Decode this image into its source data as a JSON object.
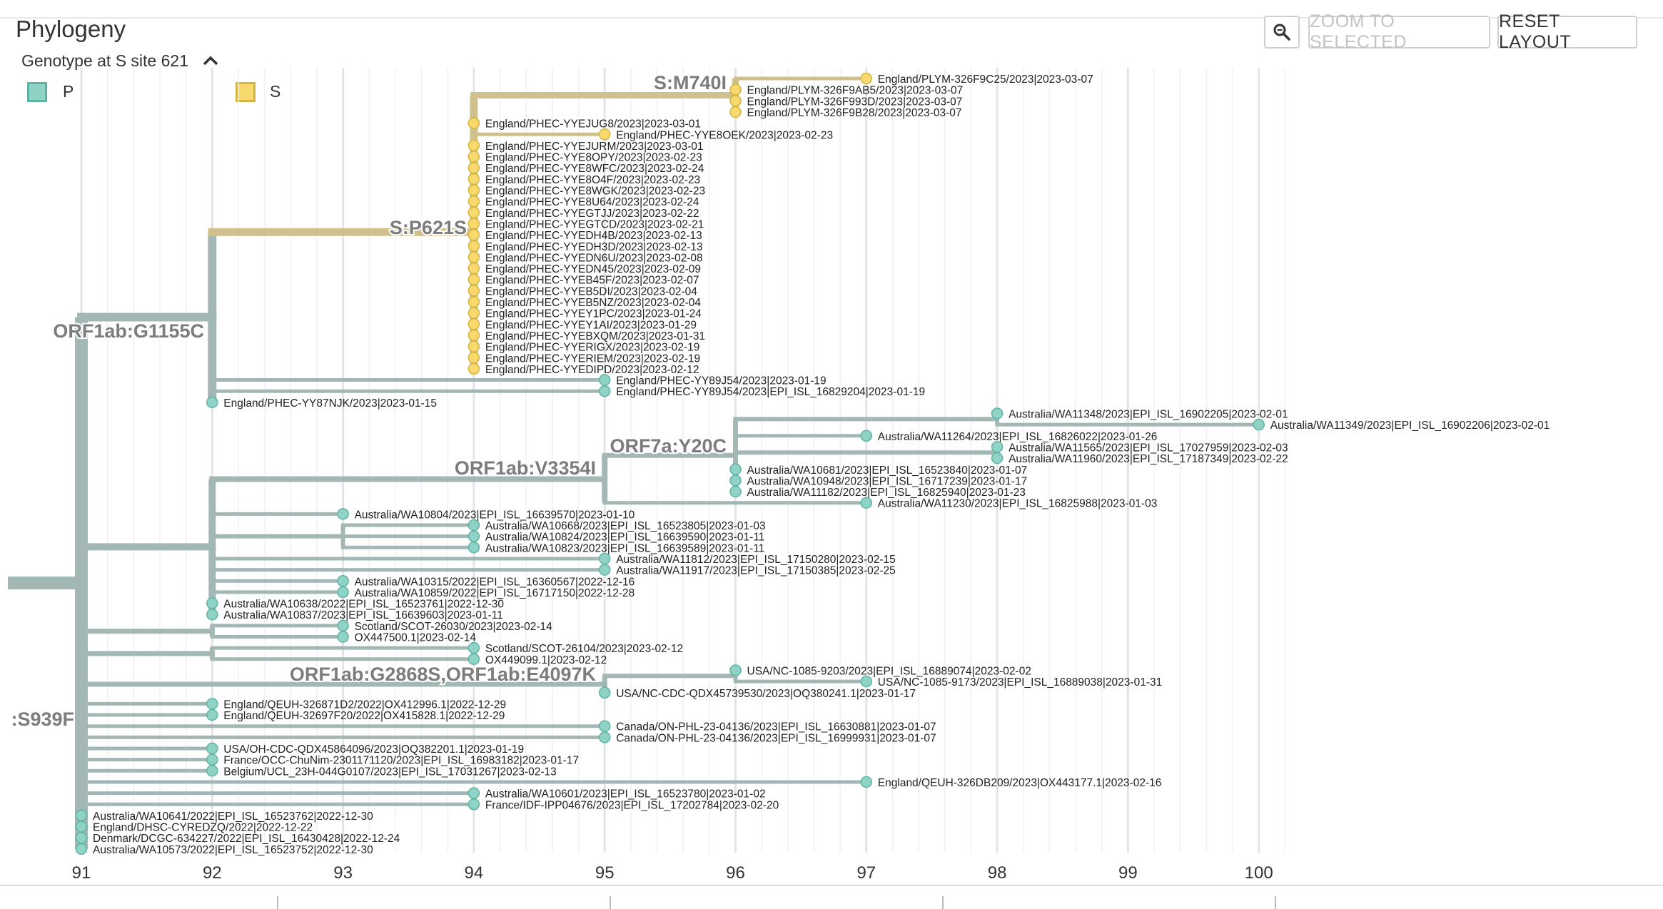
{
  "title": "Phylogeny",
  "toolbar": {
    "zoom_icon": "magnifier-icon",
    "zoom_to_selected_label": "ZOOM TO SELECTED",
    "reset_layout_label": "RESET LAYOUT"
  },
  "legend": {
    "title": "Genotype at S site 621",
    "collapse_icon": "chevron-up-icon",
    "items": [
      {
        "label": "P",
        "color": "#8fd3c6",
        "stroke": "#5fb3a3"
      },
      {
        "label": "S",
        "color": "#f8d96d",
        "stroke": "#d6b441"
      }
    ]
  },
  "colors": {
    "branch_P": "#a3b8b4",
    "branch_S": "#d0c08d",
    "tip_P": "#8fd3c6",
    "tip_S": "#f8d96d"
  },
  "chart_data": {
    "type": "tree",
    "x_axis": {
      "ticks": [
        91,
        92,
        93,
        94,
        95,
        96,
        97,
        98,
        99,
        100
      ],
      "range": [
        90.5,
        100.5
      ]
    },
    "mutation_labels": [
      "S:M740I",
      "S:P621S",
      "ORF1ab:G1155C",
      "ORF7a:Y20C",
      "ORF1ab:V3354I",
      "ORF1ab:G2868S,ORF1ab:E4097K",
      ":S939F"
    ],
    "tips": [
      {
        "name": "England/PLYM-326F9C25/2023|2023-03-07",
        "div": 97,
        "genotype": "S"
      },
      {
        "name": "England/PLYM-326F9AB5/2023|2023-03-07",
        "div": 96,
        "genotype": "S"
      },
      {
        "name": "England/PLYM-326F993D/2023|2023-03-07",
        "div": 96,
        "genotype": "S"
      },
      {
        "name": "England/PLYM-326F9B28/2023|2023-03-07",
        "div": 96,
        "genotype": "S"
      },
      {
        "name": "England/PHEC-YYEJUG8/2023|2023-03-01",
        "div": 94,
        "genotype": "S"
      },
      {
        "name": "England/PHEC-YYE8OEK/2023|2023-02-23",
        "div": 95,
        "genotype": "S"
      },
      {
        "name": "England/PHEC-YYEJURM/2023|2023-03-01",
        "div": 94,
        "genotype": "S"
      },
      {
        "name": "England/PHEC-YYE8OPY/2023|2023-02-23",
        "div": 94,
        "genotype": "S"
      },
      {
        "name": "England/PHEC-YYE8WFC/2023|2023-02-24",
        "div": 94,
        "genotype": "S"
      },
      {
        "name": "England/PHEC-YYE8O4F/2023|2023-02-23",
        "div": 94,
        "genotype": "S"
      },
      {
        "name": "England/PHEC-YYE8WGK/2023|2023-02-23",
        "div": 94,
        "genotype": "S"
      },
      {
        "name": "England/PHEC-YYE8U64/2023|2023-02-24",
        "div": 94,
        "genotype": "S"
      },
      {
        "name": "England/PHEC-YYEGTJJ/2023|2023-02-22",
        "div": 94,
        "genotype": "S"
      },
      {
        "name": "England/PHEC-YYEGTCD/2023|2023-02-21",
        "div": 94,
        "genotype": "S"
      },
      {
        "name": "England/PHEC-YYEDH4B/2023|2023-02-13",
        "div": 94,
        "genotype": "S"
      },
      {
        "name": "England/PHEC-YYEDH3D/2023|2023-02-13",
        "div": 94,
        "genotype": "S"
      },
      {
        "name": "England/PHEC-YYEDN6U/2023|2023-02-08",
        "div": 94,
        "genotype": "S"
      },
      {
        "name": "England/PHEC-YYEDN45/2023|2023-02-09",
        "div": 94,
        "genotype": "S"
      },
      {
        "name": "England/PHEC-YYEB45F/2023|2023-02-07",
        "div": 94,
        "genotype": "S"
      },
      {
        "name": "England/PHEC-YYEB5DI/2023|2023-02-04",
        "div": 94,
        "genotype": "S"
      },
      {
        "name": "England/PHEC-YYEB5NZ/2023|2023-02-04",
        "div": 94,
        "genotype": "S"
      },
      {
        "name": "England/PHEC-YYEY1PC/2023|2023-01-24",
        "div": 94,
        "genotype": "S"
      },
      {
        "name": "England/PHEC-YYEY1AI/2023|2023-01-29",
        "div": 94,
        "genotype": "S"
      },
      {
        "name": "England/PHEC-YYEBXQM/2023|2023-01-31",
        "div": 94,
        "genotype": "S"
      },
      {
        "name": "England/PHEC-YYERIGX/2023|2023-02-19",
        "div": 94,
        "genotype": "S"
      },
      {
        "name": "England/PHEC-YYERIEM/2023|2023-02-19",
        "div": 94,
        "genotype": "S"
      },
      {
        "name": "England/PHEC-YYEDIPD/2023|2023-02-12",
        "div": 94,
        "genotype": "S"
      },
      {
        "name": "England/PHEC-YY89J54/2023|2023-01-19",
        "div": 95,
        "genotype": "P"
      },
      {
        "name": "England/PHEC-YY89J54/2023|EPI_ISL_16829204|2023-01-19",
        "div": 95,
        "genotype": "P"
      },
      {
        "name": "England/PHEC-YY87NJK/2023|2023-01-15",
        "div": 92,
        "genotype": "P"
      },
      {
        "name": "Australia/WA11348/2023|EPI_ISL_16902205|2023-02-01",
        "div": 98,
        "genotype": "P"
      },
      {
        "name": "Australia/WA11349/2023|EPI_ISL_16902206|2023-02-01",
        "div": 100,
        "genotype": "P"
      },
      {
        "name": "Australia/WA11264/2023|EPI_ISL_16826022|2023-01-26",
        "div": 97,
        "genotype": "P"
      },
      {
        "name": "Australia/WA11565/2023|EPI_ISL_17027959|2023-02-03",
        "div": 98,
        "genotype": "P"
      },
      {
        "name": "Australia/WA11960/2023|EPI_ISL_17187349|2023-02-22",
        "div": 98,
        "genotype": "P"
      },
      {
        "name": "Australia/WA10681/2023|EPI_ISL_16523840|2023-01-07",
        "div": 96,
        "genotype": "P"
      },
      {
        "name": "Australia/WA10948/2023|EPI_ISL_16717239|2023-01-17",
        "div": 96,
        "genotype": "P"
      },
      {
        "name": "Australia/WA11182/2023|EPI_ISL_16825940|2023-01-23",
        "div": 96,
        "genotype": "P"
      },
      {
        "name": "Australia/WA11230/2023|EPI_ISL_16825988|2023-01-03",
        "div": 97,
        "genotype": "P"
      },
      {
        "name": "Australia/WA10804/2023|EPI_ISL_16639570|2023-01-10",
        "div": 93,
        "genotype": "P"
      },
      {
        "name": "Australia/WA10668/2023|EPI_ISL_16523805|2023-01-03",
        "div": 94,
        "genotype": "P"
      },
      {
        "name": "Australia/WA10824/2023|EPI_ISL_16639590|2023-01-11",
        "div": 94,
        "genotype": "P"
      },
      {
        "name": "Australia/WA10823/2023|EPI_ISL_16639589|2023-01-11",
        "div": 94,
        "genotype": "P"
      },
      {
        "name": "Australia/WA11812/2023|EPI_ISL_17150280|2023-02-15",
        "div": 95,
        "genotype": "P"
      },
      {
        "name": "Australia/WA11917/2023|EPI_ISL_17150385|2023-02-25",
        "div": 95,
        "genotype": "P"
      },
      {
        "name": "Australia/WA10315/2022|EPI_ISL_16360567|2022-12-16",
        "div": 93,
        "genotype": "P"
      },
      {
        "name": "Australia/WA10859/2022|EPI_ISL_16717150|2022-12-28",
        "div": 93,
        "genotype": "P"
      },
      {
        "name": "Australia/WA10638/2022|EPI_ISL_16523761|2022-12-30",
        "div": 92,
        "genotype": "P"
      },
      {
        "name": "Australia/WA10837/2023|EPI_ISL_16639603|2023-01-11",
        "div": 92,
        "genotype": "P"
      },
      {
        "name": "Scotland/SCOT-26030/2023|2023-02-14",
        "div": 93,
        "genotype": "P"
      },
      {
        "name": "OX447500.1|2023-02-14",
        "div": 93,
        "genotype": "P"
      },
      {
        "name": "Scotland/SCOT-26104/2023|2023-02-12",
        "div": 94,
        "genotype": "P"
      },
      {
        "name": "OX449099.1|2023-02-12",
        "div": 94,
        "genotype": "P"
      },
      {
        "name": "USA/NC-1085-9203/2023|EPI_ISL_16889074|2023-02-02",
        "div": 96,
        "genotype": "P"
      },
      {
        "name": "USA/NC-1085-9173/2023|EPI_ISL_16889038|2023-01-31",
        "div": 97,
        "genotype": "P"
      },
      {
        "name": "USA/NC-CDC-QDX45739530/2023|OQ380241.1|2023-01-17",
        "div": 95,
        "genotype": "P"
      },
      {
        "name": "England/QEUH-326871D2/2022|OX412996.1|2022-12-29",
        "div": 92,
        "genotype": "P"
      },
      {
        "name": "England/QEUH-32697F20/2022|OX415828.1|2022-12-29",
        "div": 92,
        "genotype": "P"
      },
      {
        "name": "Canada/ON-PHL-23-04136/2023|EPI_ISL_16630881|2023-01-07",
        "div": 95,
        "genotype": "P"
      },
      {
        "name": "Canada/ON-PHL-23-04136/2023|EPI_ISL_16999931|2023-01-07",
        "div": 95,
        "genotype": "P"
      },
      {
        "name": "USA/OH-CDC-QDX45864096/2023|OQ382201.1|2023-01-19",
        "div": 92,
        "genotype": "P"
      },
      {
        "name": "France/OCC-ChuNim-2301171120/2023|EPI_ISL_16983182|2023-01-17",
        "div": 92,
        "genotype": "P"
      },
      {
        "name": "Belgium/UCL_23H-044G0107/2023|EPI_ISL_17031267|2023-02-13",
        "div": 92,
        "genotype": "P"
      },
      {
        "name": "England/QEUH-326DB209/2023|OX443177.1|2023-02-16",
        "div": 97,
        "genotype": "P"
      },
      {
        "name": "Australia/WA10601/2023|EPI_ISL_16523780|2023-01-02",
        "div": 94,
        "genotype": "P"
      },
      {
        "name": "France/IDF-IPP04676/2023|EPI_ISL_17202784|2023-02-20",
        "div": 94,
        "genotype": "P"
      },
      {
        "name": "Australia/WA10641/2022|EPI_ISL_16523762|2022-12-30",
        "div": 91,
        "genotype": "P"
      },
      {
        "name": "England/DHSC-CYREDZQ/2022|2022-12-22",
        "div": 91,
        "genotype": "P"
      },
      {
        "name": "Denmark/DCGC-634227/2022|EPI_ISL_16430428|2022-12-24",
        "div": 91,
        "genotype": "P"
      },
      {
        "name": "Australia/WA10573/2022|EPI_ISL_16523752|2022-12-30",
        "div": 91,
        "genotype": "P"
      }
    ]
  }
}
